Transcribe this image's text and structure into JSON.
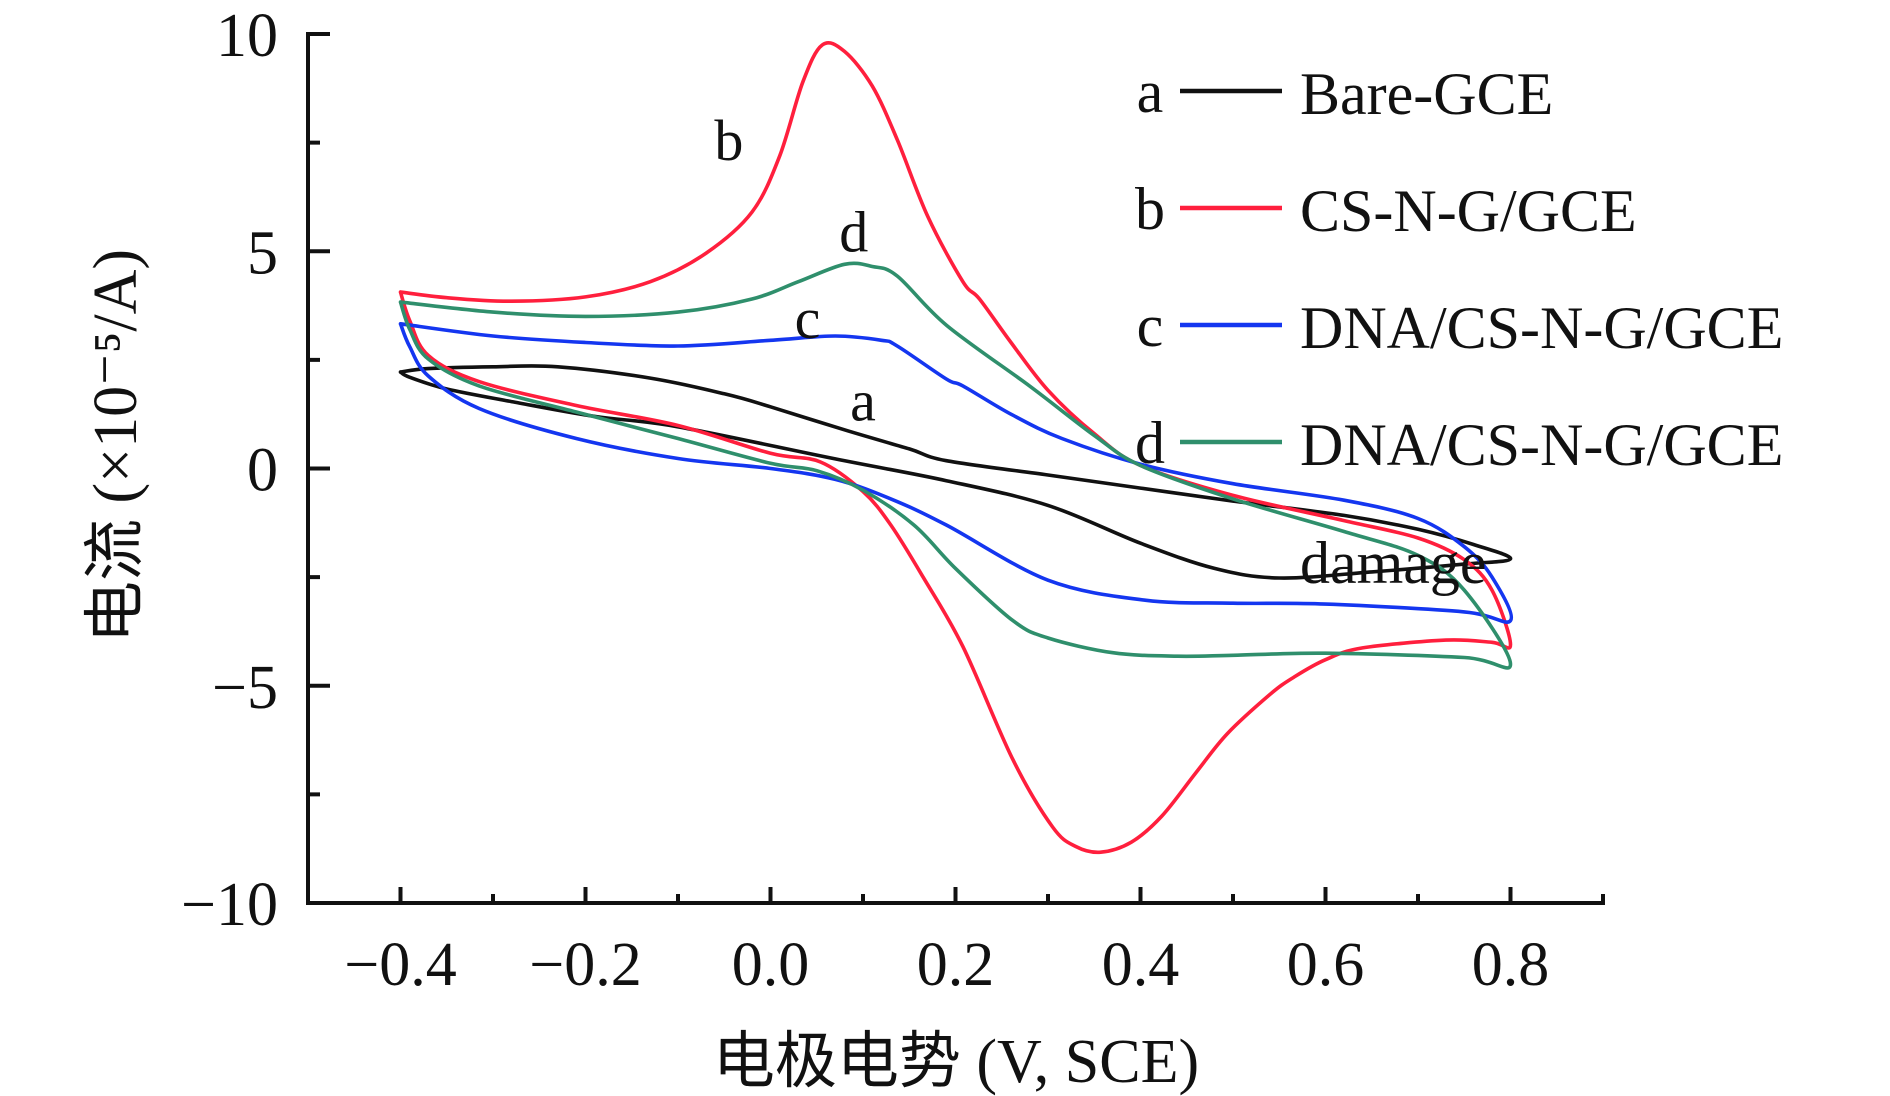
{
  "chart_data": {
    "type": "line",
    "title": "",
    "xlabel": "电极电势 (V, SCE)",
    "ylabel": "电流 (×10⁻⁵/A)",
    "xlim": [
      -0.5,
      0.9
    ],
    "ylim": [
      -10,
      10
    ],
    "grid": false,
    "legend_position": "top-right",
    "x_ticks": [
      -0.4,
      -0.2,
      0.0,
      0.2,
      0.4,
      0.6,
      0.8
    ],
    "x_tick_labels": [
      "−0.4",
      "−0.2",
      "0.0",
      "0.2",
      "0.4",
      "0.6",
      "0.8"
    ],
    "x_minor_ticks": [
      -0.5,
      -0.3,
      -0.1,
      0.1,
      0.3,
      0.5,
      0.7,
      0.9
    ],
    "y_ticks": [
      -10,
      -5,
      0,
      5,
      10
    ],
    "y_tick_labels": [
      "−10",
      "−5",
      "0",
      "5",
      "10"
    ],
    "y_minor_ticks": [
      -7.5,
      -2.5,
      2.5,
      7.5
    ],
    "series": [
      {
        "key": "a",
        "name": "Bare-GCE",
        "color": "#111111",
        "label_point": [
          0.1,
          1.1
        ],
        "points": [
          [
            -0.4,
            2.22
          ],
          [
            -0.37,
            2.3
          ],
          [
            -0.3,
            2.34
          ],
          [
            -0.23,
            2.34
          ],
          [
            -0.13,
            2.08
          ],
          [
            -0.05,
            1.72
          ],
          [
            0.0,
            1.42
          ],
          [
            0.083,
            0.87
          ],
          [
            0.15,
            0.45
          ],
          [
            0.19,
            0.18
          ],
          [
            0.3,
            -0.15
          ],
          [
            0.4,
            -0.45
          ],
          [
            0.5,
            -0.75
          ],
          [
            0.62,
            -1.08
          ],
          [
            0.7,
            -1.4
          ],
          [
            0.76,
            -1.75
          ],
          [
            0.8,
            -2.08
          ],
          [
            0.75,
            -2.2
          ],
          [
            0.65,
            -2.38
          ],
          [
            0.55,
            -2.52
          ],
          [
            0.48,
            -2.3
          ],
          [
            0.4,
            -1.72
          ],
          [
            0.3,
            -0.85
          ],
          [
            0.19,
            -0.28
          ],
          [
            0.07,
            0.22
          ],
          [
            -0.1,
            0.96
          ],
          [
            -0.19,
            1.2
          ],
          [
            -0.28,
            1.54
          ],
          [
            -0.35,
            1.83
          ],
          [
            -0.39,
            2.1
          ],
          [
            -0.4,
            2.22
          ]
        ]
      },
      {
        "key": "b",
        "name": "CS-N-G/GCE",
        "color": "#ff1f3d",
        "label_point": [
          -0.045,
          7.1
        ],
        "points": [
          [
            -0.4,
            4.06
          ],
          [
            -0.35,
            3.93
          ],
          [
            -0.28,
            3.85
          ],
          [
            -0.2,
            3.95
          ],
          [
            -0.13,
            4.3
          ],
          [
            -0.07,
            4.95
          ],
          [
            -0.02,
            5.9
          ],
          [
            0.01,
            7.2
          ],
          [
            0.035,
            8.9
          ],
          [
            0.056,
            9.75
          ],
          [
            0.08,
            9.6
          ],
          [
            0.11,
            8.8
          ],
          [
            0.137,
            7.57
          ],
          [
            0.17,
            5.8
          ],
          [
            0.208,
            4.3
          ],
          [
            0.226,
            3.9
          ],
          [
            0.26,
            2.9
          ],
          [
            0.3,
            1.8
          ],
          [
            0.35,
            0.8
          ],
          [
            0.4,
            0.07
          ],
          [
            0.5,
            -0.62
          ],
          [
            0.62,
            -1.2
          ],
          [
            0.7,
            -1.6
          ],
          [
            0.75,
            -2.1
          ],
          [
            0.78,
            -2.8
          ],
          [
            0.8,
            -4.05
          ],
          [
            0.78,
            -4.0
          ],
          [
            0.73,
            -3.95
          ],
          [
            0.64,
            -4.13
          ],
          [
            0.6,
            -4.4
          ],
          [
            0.566,
            -4.8
          ],
          [
            0.54,
            -5.2
          ],
          [
            0.494,
            -6.1
          ],
          [
            0.46,
            -7.0
          ],
          [
            0.423,
            -8.0
          ],
          [
            0.39,
            -8.6
          ],
          [
            0.357,
            -8.83
          ],
          [
            0.33,
            -8.7
          ],
          [
            0.305,
            -8.25
          ],
          [
            0.262,
            -6.7
          ],
          [
            0.208,
            -4.1
          ],
          [
            0.165,
            -2.5
          ],
          [
            0.13,
            -1.3
          ],
          [
            0.1,
            -0.53
          ],
          [
            0.054,
            0.15
          ],
          [
            0.0,
            0.35
          ],
          [
            -0.1,
            0.99
          ],
          [
            -0.21,
            1.45
          ],
          [
            -0.315,
            2.0
          ],
          [
            -0.37,
            2.6
          ],
          [
            -0.39,
            3.4
          ],
          [
            -0.4,
            4.06
          ]
        ]
      },
      {
        "key": "c",
        "name": "DNA/CS-N-G/GCE",
        "color": "#1436f0",
        "label_point": [
          0.04,
          3.0
        ],
        "points": [
          [
            -0.4,
            3.33
          ],
          [
            -0.3,
            3.05
          ],
          [
            -0.2,
            2.9
          ],
          [
            -0.1,
            2.82
          ],
          [
            0.0,
            2.95
          ],
          [
            0.07,
            3.05
          ],
          [
            0.12,
            2.95
          ],
          [
            0.137,
            2.82
          ],
          [
            0.19,
            2.06
          ],
          [
            0.208,
            1.9
          ],
          [
            0.26,
            1.25
          ],
          [
            0.315,
            0.69
          ],
          [
            0.4,
            0.1
          ],
          [
            0.5,
            -0.35
          ],
          [
            0.62,
            -0.73
          ],
          [
            0.7,
            -1.15
          ],
          [
            0.75,
            -1.8
          ],
          [
            0.78,
            -2.5
          ],
          [
            0.8,
            -3.5
          ],
          [
            0.75,
            -3.3
          ],
          [
            0.6,
            -3.12
          ],
          [
            0.5,
            -3.1
          ],
          [
            0.405,
            -3.03
          ],
          [
            0.3,
            -2.57
          ],
          [
            0.19,
            -1.3
          ],
          [
            0.13,
            -0.7
          ],
          [
            0.07,
            -0.25
          ],
          [
            0.0,
            0.0
          ],
          [
            -0.1,
            0.23
          ],
          [
            -0.21,
            0.69
          ],
          [
            -0.315,
            1.38
          ],
          [
            -0.37,
            2.13
          ],
          [
            -0.39,
            2.8
          ],
          [
            -0.4,
            3.33
          ]
        ]
      },
      {
        "key": "d",
        "name": "DNA/CS-N-G/GCE damage",
        "name_lines": [
          "DNA/CS-N-G/GCE",
          "damage"
        ],
        "color": "#2f8f6c",
        "label_point": [
          0.09,
          5.0
        ],
        "points": [
          [
            -0.4,
            3.83
          ],
          [
            -0.3,
            3.6
          ],
          [
            -0.2,
            3.5
          ],
          [
            -0.1,
            3.6
          ],
          [
            -0.02,
            3.9
          ],
          [
            0.03,
            4.3
          ],
          [
            0.08,
            4.7
          ],
          [
            0.11,
            4.65
          ],
          [
            0.137,
            4.43
          ],
          [
            0.19,
            3.3
          ],
          [
            0.28,
            1.9
          ],
          [
            0.35,
            0.76
          ],
          [
            0.4,
            0.07
          ],
          [
            0.5,
            -0.7
          ],
          [
            0.62,
            -1.45
          ],
          [
            0.7,
            -2.0
          ],
          [
            0.75,
            -2.8
          ],
          [
            0.8,
            -4.5
          ],
          [
            0.75,
            -4.35
          ],
          [
            0.6,
            -4.25
          ],
          [
            0.5,
            -4.3
          ],
          [
            0.44,
            -4.32
          ],
          [
            0.37,
            -4.24
          ],
          [
            0.3,
            -3.9
          ],
          [
            0.262,
            -3.5
          ],
          [
            0.2,
            -2.3
          ],
          [
            0.155,
            -1.3
          ],
          [
            0.1,
            -0.5
          ],
          [
            0.05,
            -0.05
          ],
          [
            0.0,
            0.12
          ],
          [
            -0.1,
            0.69
          ],
          [
            -0.21,
            1.3
          ],
          [
            -0.315,
            1.9
          ],
          [
            -0.37,
            2.52
          ],
          [
            -0.39,
            3.2
          ],
          [
            -0.4,
            3.83
          ]
        ]
      }
    ]
  }
}
